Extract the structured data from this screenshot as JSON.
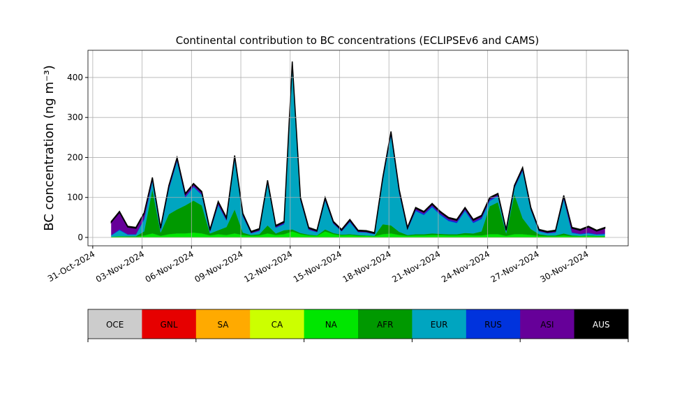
{
  "chart_data": {
    "type": "stacked_area",
    "title": "Continental contribution to BC concentrations (ECLIPSEv6 and CAMS)",
    "ylabel": "BC concentration (ng m⁻³)",
    "x": [
      "2024-11-01T03:00",
      "2024-11-01T15:00",
      "2024-11-02T03:00",
      "2024-11-02T15:00",
      "2024-11-03T03:00",
      "2024-11-03T15:00",
      "2024-11-04T03:00",
      "2024-11-04T15:00",
      "2024-11-05T03:00",
      "2024-11-05T15:00",
      "2024-11-06T03:00",
      "2024-11-06T15:00",
      "2024-11-07T03:00",
      "2024-11-07T15:00",
      "2024-11-08T03:00",
      "2024-11-08T15:00",
      "2024-11-09T03:00",
      "2024-11-09T15:00",
      "2024-11-10T03:00",
      "2024-11-10T15:00",
      "2024-11-11T03:00",
      "2024-11-11T15:00",
      "2024-11-12T03:00",
      "2024-11-12T15:00",
      "2024-11-13T03:00",
      "2024-11-13T15:00",
      "2024-11-14T03:00",
      "2024-11-14T15:00",
      "2024-11-15T03:00",
      "2024-11-15T15:00",
      "2024-11-16T03:00",
      "2024-11-16T15:00",
      "2024-11-17T03:00",
      "2024-11-17T15:00",
      "2024-11-18T03:00",
      "2024-11-18T15:00",
      "2024-11-19T03:00",
      "2024-11-19T15:00",
      "2024-11-20T03:00",
      "2024-11-20T15:00",
      "2024-11-21T03:00",
      "2024-11-21T15:00",
      "2024-11-22T03:00",
      "2024-11-22T15:00",
      "2024-11-23T03:00",
      "2024-11-23T15:00",
      "2024-11-24T03:00",
      "2024-11-24T15:00",
      "2024-11-25T03:00",
      "2024-11-25T15:00",
      "2024-11-26T03:00",
      "2024-11-26T15:00",
      "2024-11-27T03:00",
      "2024-11-27T15:00",
      "2024-11-28T03:00",
      "2024-11-28T15:00",
      "2024-11-29T03:00",
      "2024-11-29T15:00",
      "2024-11-30T03:00",
      "2024-11-30T15:00",
      "2024-12-01T03:00"
    ],
    "series": [
      {
        "name": "OCE",
        "color": "#cccccc",
        "values": [
          0,
          0,
          0,
          0,
          0,
          0,
          0,
          0,
          0,
          0,
          0,
          0,
          0,
          0,
          0,
          0,
          0,
          0,
          0,
          0,
          0,
          0,
          0,
          0,
          0,
          0,
          0,
          0,
          0,
          0,
          0,
          0,
          0,
          0,
          0,
          0,
          0,
          0,
          0,
          0,
          0,
          0,
          0,
          0,
          0,
          0,
          0,
          0,
          0,
          0,
          0,
          0,
          0,
          0,
          0,
          0,
          0,
          0,
          0,
          0,
          0
        ]
      },
      {
        "name": "GNL",
        "color": "#e60000",
        "values": [
          0,
          0,
          0,
          0,
          0,
          0,
          0,
          0,
          0,
          0,
          0,
          0,
          0,
          0,
          0,
          0,
          0,
          0,
          0,
          0,
          0,
          0,
          0,
          0,
          0,
          0,
          0,
          0,
          0,
          0,
          0,
          0,
          0,
          0,
          0,
          0,
          0,
          0,
          0,
          0,
          0,
          0,
          0,
          0,
          0,
          0,
          0,
          0,
          0,
          0,
          0,
          0,
          0,
          0,
          0,
          0,
          0,
          0,
          0,
          0,
          0
        ]
      },
      {
        "name": "SA",
        "color": "#ffaa00",
        "values": [
          0,
          0,
          0,
          0,
          0,
          0,
          0,
          0,
          0,
          0,
          0,
          0,
          0,
          0,
          0,
          0,
          0,
          0,
          0,
          0,
          0,
          0,
          0,
          0,
          0,
          0,
          0,
          0,
          0,
          0,
          0,
          0,
          0,
          0,
          0,
          0,
          0,
          0,
          0,
          0,
          0,
          0,
          0,
          0,
          0,
          0,
          0,
          0,
          0,
          0,
          0,
          0,
          0,
          0,
          0,
          0,
          0,
          0,
          0,
          0,
          0
        ]
      },
      {
        "name": "CA",
        "color": "#ccff00",
        "values": [
          0,
          0,
          0,
          0,
          0,
          0,
          0,
          0,
          0,
          0,
          0,
          0,
          0,
          0,
          0,
          0,
          0,
          0,
          0,
          0,
          0,
          0,
          0,
          0,
          0,
          0,
          0,
          0,
          0,
          0,
          0,
          0,
          0,
          0,
          0,
          0,
          0,
          0,
          0,
          0,
          0,
          0,
          0,
          0,
          0,
          0,
          0,
          0,
          0,
          0,
          0,
          0,
          0,
          0,
          0,
          0,
          0,
          0,
          0,
          0,
          0
        ]
      },
      {
        "name": "NA",
        "color": "#00e600",
        "values": [
          2,
          3,
          2,
          2,
          5,
          10,
          4,
          8,
          10,
          10,
          12,
          10,
          5,
          8,
          6,
          10,
          6,
          4,
          5,
          10,
          6,
          8,
          15,
          8,
          5,
          4,
          15,
          8,
          5,
          6,
          4,
          4,
          3,
          8,
          10,
          6,
          4,
          5,
          5,
          6,
          6,
          5,
          5,
          6,
          5,
          5,
          8,
          8,
          4,
          8,
          8,
          6,
          4,
          3,
          3,
          5,
          3,
          3,
          4,
          3,
          3
        ]
      },
      {
        "name": "AFR",
        "color": "#009900",
        "values": [
          0,
          0,
          1,
          1,
          10,
          110,
          8,
          50,
          60,
          70,
          80,
          70,
          5,
          10,
          20,
          60,
          6,
          2,
          3,
          20,
          4,
          10,
          5,
          3,
          2,
          1,
          5,
          3,
          2,
          2,
          2,
          1,
          1,
          25,
          20,
          8,
          2,
          3,
          3,
          4,
          3,
          3,
          3,
          5,
          5,
          10,
          70,
          80,
          6,
          100,
          40,
          15,
          4,
          2,
          2,
          5,
          2,
          1,
          1,
          1,
          1
        ]
      },
      {
        "name": "EUR",
        "color": "#00a5c0",
        "values": [
          3,
          15,
          4,
          4,
          30,
          20,
          6,
          62,
          120,
          20,
          34,
          26,
          4,
          62,
          16,
          125,
          40,
          4,
          8,
          105,
          14,
          15,
          410,
          81,
          12,
          8,
          72,
          23,
          8,
          30,
          7,
          7,
          4,
          108,
          225,
          96,
          13,
          58,
          48,
          66,
          47,
          33,
          28,
          55,
          26,
          31,
          13,
          15,
          5,
          15,
          118,
          47,
          7,
          5,
          7,
          85,
          6,
          4,
          5,
          3,
          4
        ]
      },
      {
        "name": "RUS",
        "color": "#0033dd",
        "values": [
          1,
          2,
          1,
          1,
          3,
          3,
          1,
          3,
          3,
          2,
          2,
          2,
          1,
          3,
          2,
          3,
          2,
          1,
          1,
          2,
          1,
          2,
          3,
          2,
          1,
          1,
          2,
          1,
          1,
          2,
          1,
          1,
          1,
          3,
          3,
          2,
          1,
          3,
          3,
          3,
          3,
          3,
          3,
          3,
          3,
          3,
          3,
          2,
          1,
          2,
          3,
          2,
          1,
          1,
          1,
          3,
          2,
          1,
          2,
          1,
          2
        ]
      },
      {
        "name": "ASI",
        "color": "#660099",
        "values": [
          32,
          43,
          18,
          15,
          12,
          5,
          4,
          5,
          5,
          6,
          5,
          5,
          3,
          5,
          4,
          5,
          4,
          2,
          3,
          4,
          3,
          3,
          5,
          4,
          3,
          2,
          4,
          3,
          2,
          3,
          2,
          2,
          1,
          4,
          5,
          6,
          3,
          4,
          4,
          4,
          4,
          4,
          4,
          4,
          4,
          4,
          4,
          3,
          2,
          3,
          4,
          3,
          2,
          2,
          3,
          5,
          10,
          9,
          14,
          8,
          13
        ]
      },
      {
        "name": "AUS",
        "color": "#000000",
        "values": [
          2,
          2,
          2,
          2,
          2,
          2,
          2,
          2,
          2,
          2,
          2,
          2,
          2,
          2,
          2,
          2,
          2,
          2,
          2,
          2,
          2,
          2,
          2,
          2,
          2,
          2,
          2,
          2,
          2,
          2,
          2,
          2,
          2,
          2,
          2,
          2,
          2,
          2,
          2,
          2,
          2,
          2,
          2,
          2,
          2,
          2,
          2,
          2,
          2,
          2,
          2,
          2,
          2,
          2,
          2,
          2,
          2,
          2,
          2,
          2,
          2
        ]
      }
    ],
    "xlim": [
      "2024-10-30T17:00",
      "2024-12-02T13:00"
    ],
    "xticks": [
      {
        "value": "2024-10-31",
        "label": "31-Oct-2024"
      },
      {
        "value": "2024-11-03",
        "label": "03-Nov-2024"
      },
      {
        "value": "2024-11-06",
        "label": "06-Nov-2024"
      },
      {
        "value": "2024-11-09",
        "label": "09-Nov-2024"
      },
      {
        "value": "2024-11-12",
        "label": "12-Nov-2024"
      },
      {
        "value": "2024-11-15",
        "label": "15-Nov-2024"
      },
      {
        "value": "2024-11-18",
        "label": "18-Nov-2024"
      },
      {
        "value": "2024-11-21",
        "label": "21-Nov-2024"
      },
      {
        "value": "2024-11-24",
        "label": "24-Nov-2024"
      },
      {
        "value": "2024-11-27",
        "label": "27-Nov-2024"
      },
      {
        "value": "2024-11-30",
        "label": "30-Nov-2024"
      }
    ],
    "ylim": [
      -21,
      468
    ],
    "yticks": [
      0,
      100,
      200,
      300,
      400
    ],
    "grid": true
  }
}
